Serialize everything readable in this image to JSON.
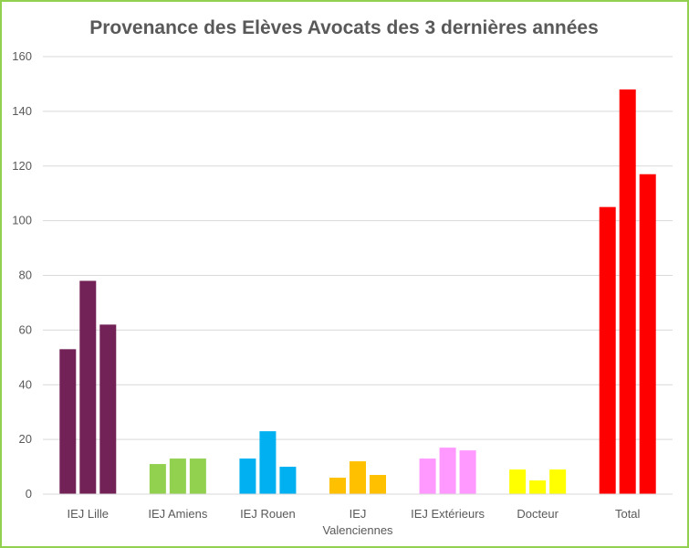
{
  "chart_data": {
    "type": "bar",
    "title": "Provenance des Elèves Avocats des 3 dernières années",
    "xlabel": "",
    "ylabel": "",
    "ylim": [
      0,
      160
    ],
    "yticks": [
      0,
      20,
      40,
      60,
      80,
      100,
      120,
      140,
      160
    ],
    "grid": true,
    "legend": "none",
    "categories": [
      {
        "label_lines": [
          "IEJ Lille"
        ],
        "color": "#722257",
        "values": [
          53,
          78,
          62
        ]
      },
      {
        "label_lines": [
          "IEJ Amiens"
        ],
        "color": "#92d050",
        "values": [
          11,
          13,
          13
        ]
      },
      {
        "label_lines": [
          "IEJ Rouen"
        ],
        "color": "#00b0f0",
        "values": [
          13,
          23,
          10
        ]
      },
      {
        "label_lines": [
          "IEJ",
          "Valenciennes"
        ],
        "color": "#ffc000",
        "values": [
          6,
          12,
          7
        ]
      },
      {
        "label_lines": [
          "IEJ Extérieurs"
        ],
        "color": "#ff99ff",
        "values": [
          13,
          17,
          16
        ]
      },
      {
        "label_lines": [
          "Docteur"
        ],
        "color": "#ffff00",
        "values": [
          9,
          5,
          9
        ]
      },
      {
        "label_lines": [
          "Total"
        ],
        "color": "#ff0000",
        "values": [
          105,
          148,
          117
        ]
      }
    ]
  }
}
